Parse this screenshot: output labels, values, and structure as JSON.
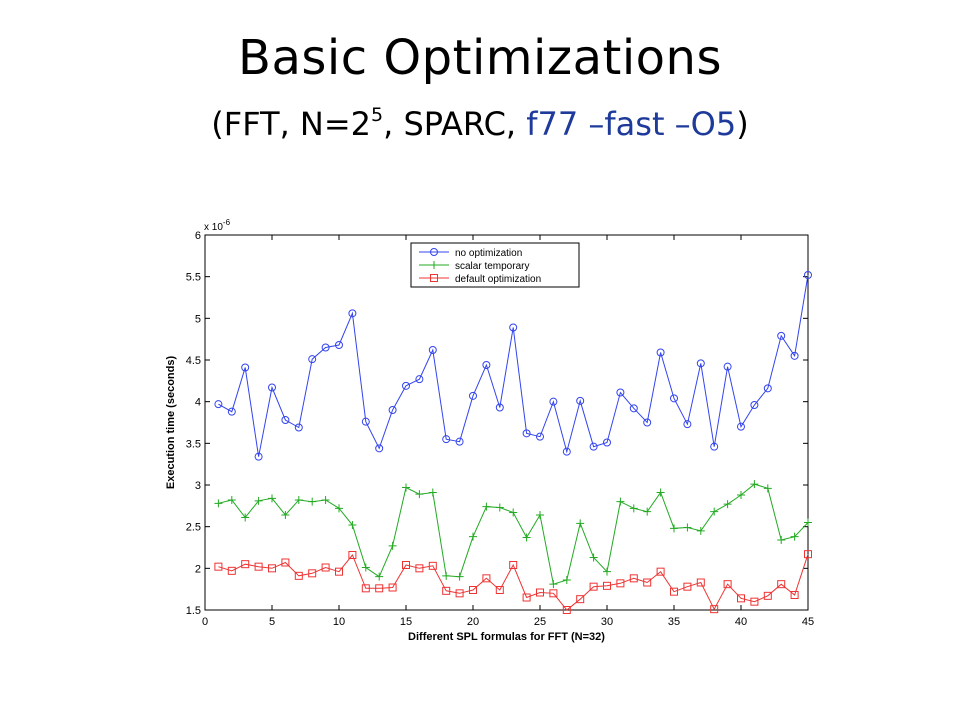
{
  "slide": {
    "title": "Basic Optimizations",
    "subtitle_open": "(FFT, N=2",
    "subtitle_exp": "5",
    "subtitle_mid": ", SPARC, ",
    "subtitle_highlight": "f77 –fast –O5",
    "subtitle_close": ")",
    "highlight_color": "#1e3a9a"
  },
  "chart_data": {
    "type": "line",
    "title": "",
    "xlabel": "Different SPL formulas for FFT (N=32)",
    "ylabel": "Execution time (seconds)",
    "y_multiplier": "x 10",
    "y_multiplier_exp": "-6",
    "xlim": [
      0,
      45
    ],
    "ylim": [
      1.5,
      6
    ],
    "xticks": [
      0,
      5,
      10,
      15,
      20,
      25,
      30,
      35,
      40,
      45
    ],
    "yticks": [
      1.5,
      2,
      2.5,
      3,
      3.5,
      4,
      4.5,
      5,
      5.5,
      6
    ],
    "ytick_labels": [
      "1.5",
      "2",
      "2.5",
      "3",
      "3.5",
      "4",
      "4.5",
      "5",
      "5.5",
      "6"
    ],
    "legend_position": "top-right",
    "x": [
      1,
      2,
      3,
      4,
      5,
      6,
      7,
      8,
      9,
      10,
      11,
      12,
      13,
      14,
      15,
      16,
      17,
      18,
      19,
      20,
      21,
      22,
      23,
      24,
      25,
      26,
      27,
      28,
      29,
      30,
      31,
      32,
      33,
      34,
      35,
      36,
      37,
      38,
      39,
      40,
      41,
      42,
      43,
      44,
      45
    ],
    "series": [
      {
        "name": "no optimization",
        "color": "#3344ee",
        "marker": "circle",
        "values": [
          3.97,
          3.88,
          4.41,
          3.34,
          4.17,
          3.78,
          3.69,
          4.51,
          4.65,
          4.68,
          5.06,
          3.76,
          3.44,
          3.9,
          4.19,
          4.27,
          4.62,
          3.55,
          3.52,
          4.07,
          4.44,
          3.93,
          4.89,
          3.62,
          3.58,
          4.0,
          3.4,
          4.01,
          3.46,
          3.51,
          4.11,
          3.92,
          3.75,
          4.59,
          4.04,
          3.73,
          4.46,
          3.46,
          4.42,
          3.7,
          3.96,
          4.16,
          4.79,
          4.55,
          5.52
        ]
      },
      {
        "name": "scalar temporary",
        "color": "#22aa22",
        "marker": "plus",
        "values": [
          2.78,
          2.82,
          2.61,
          2.81,
          2.84,
          2.64,
          2.82,
          2.8,
          2.82,
          2.72,
          2.52,
          2.01,
          1.9,
          2.27,
          2.97,
          2.89,
          2.91,
          1.91,
          1.9,
          2.38,
          2.74,
          2.73,
          2.67,
          2.37,
          2.64,
          1.81,
          1.86,
          2.54,
          2.13,
          1.96,
          2.8,
          2.72,
          2.68,
          2.91,
          2.48,
          2.49,
          2.45,
          2.68,
          2.77,
          2.88,
          3.01,
          2.96,
          2.34,
          2.38,
          2.55
        ]
      },
      {
        "name": "default optimization",
        "color": "#ee3333",
        "marker": "square",
        "values": [
          2.02,
          1.97,
          2.05,
          2.02,
          2.0,
          2.07,
          1.91,
          1.94,
          2.01,
          1.96,
          2.16,
          1.76,
          1.76,
          1.77,
          2.04,
          2.0,
          2.03,
          1.73,
          1.7,
          1.74,
          1.88,
          1.74,
          2.04,
          1.65,
          1.71,
          1.7,
          1.5,
          1.63,
          1.78,
          1.79,
          1.82,
          1.88,
          1.83,
          1.96,
          1.72,
          1.78,
          1.83,
          1.51,
          1.81,
          1.64,
          1.6,
          1.67,
          1.81,
          1.68,
          2.17
        ]
      }
    ]
  }
}
